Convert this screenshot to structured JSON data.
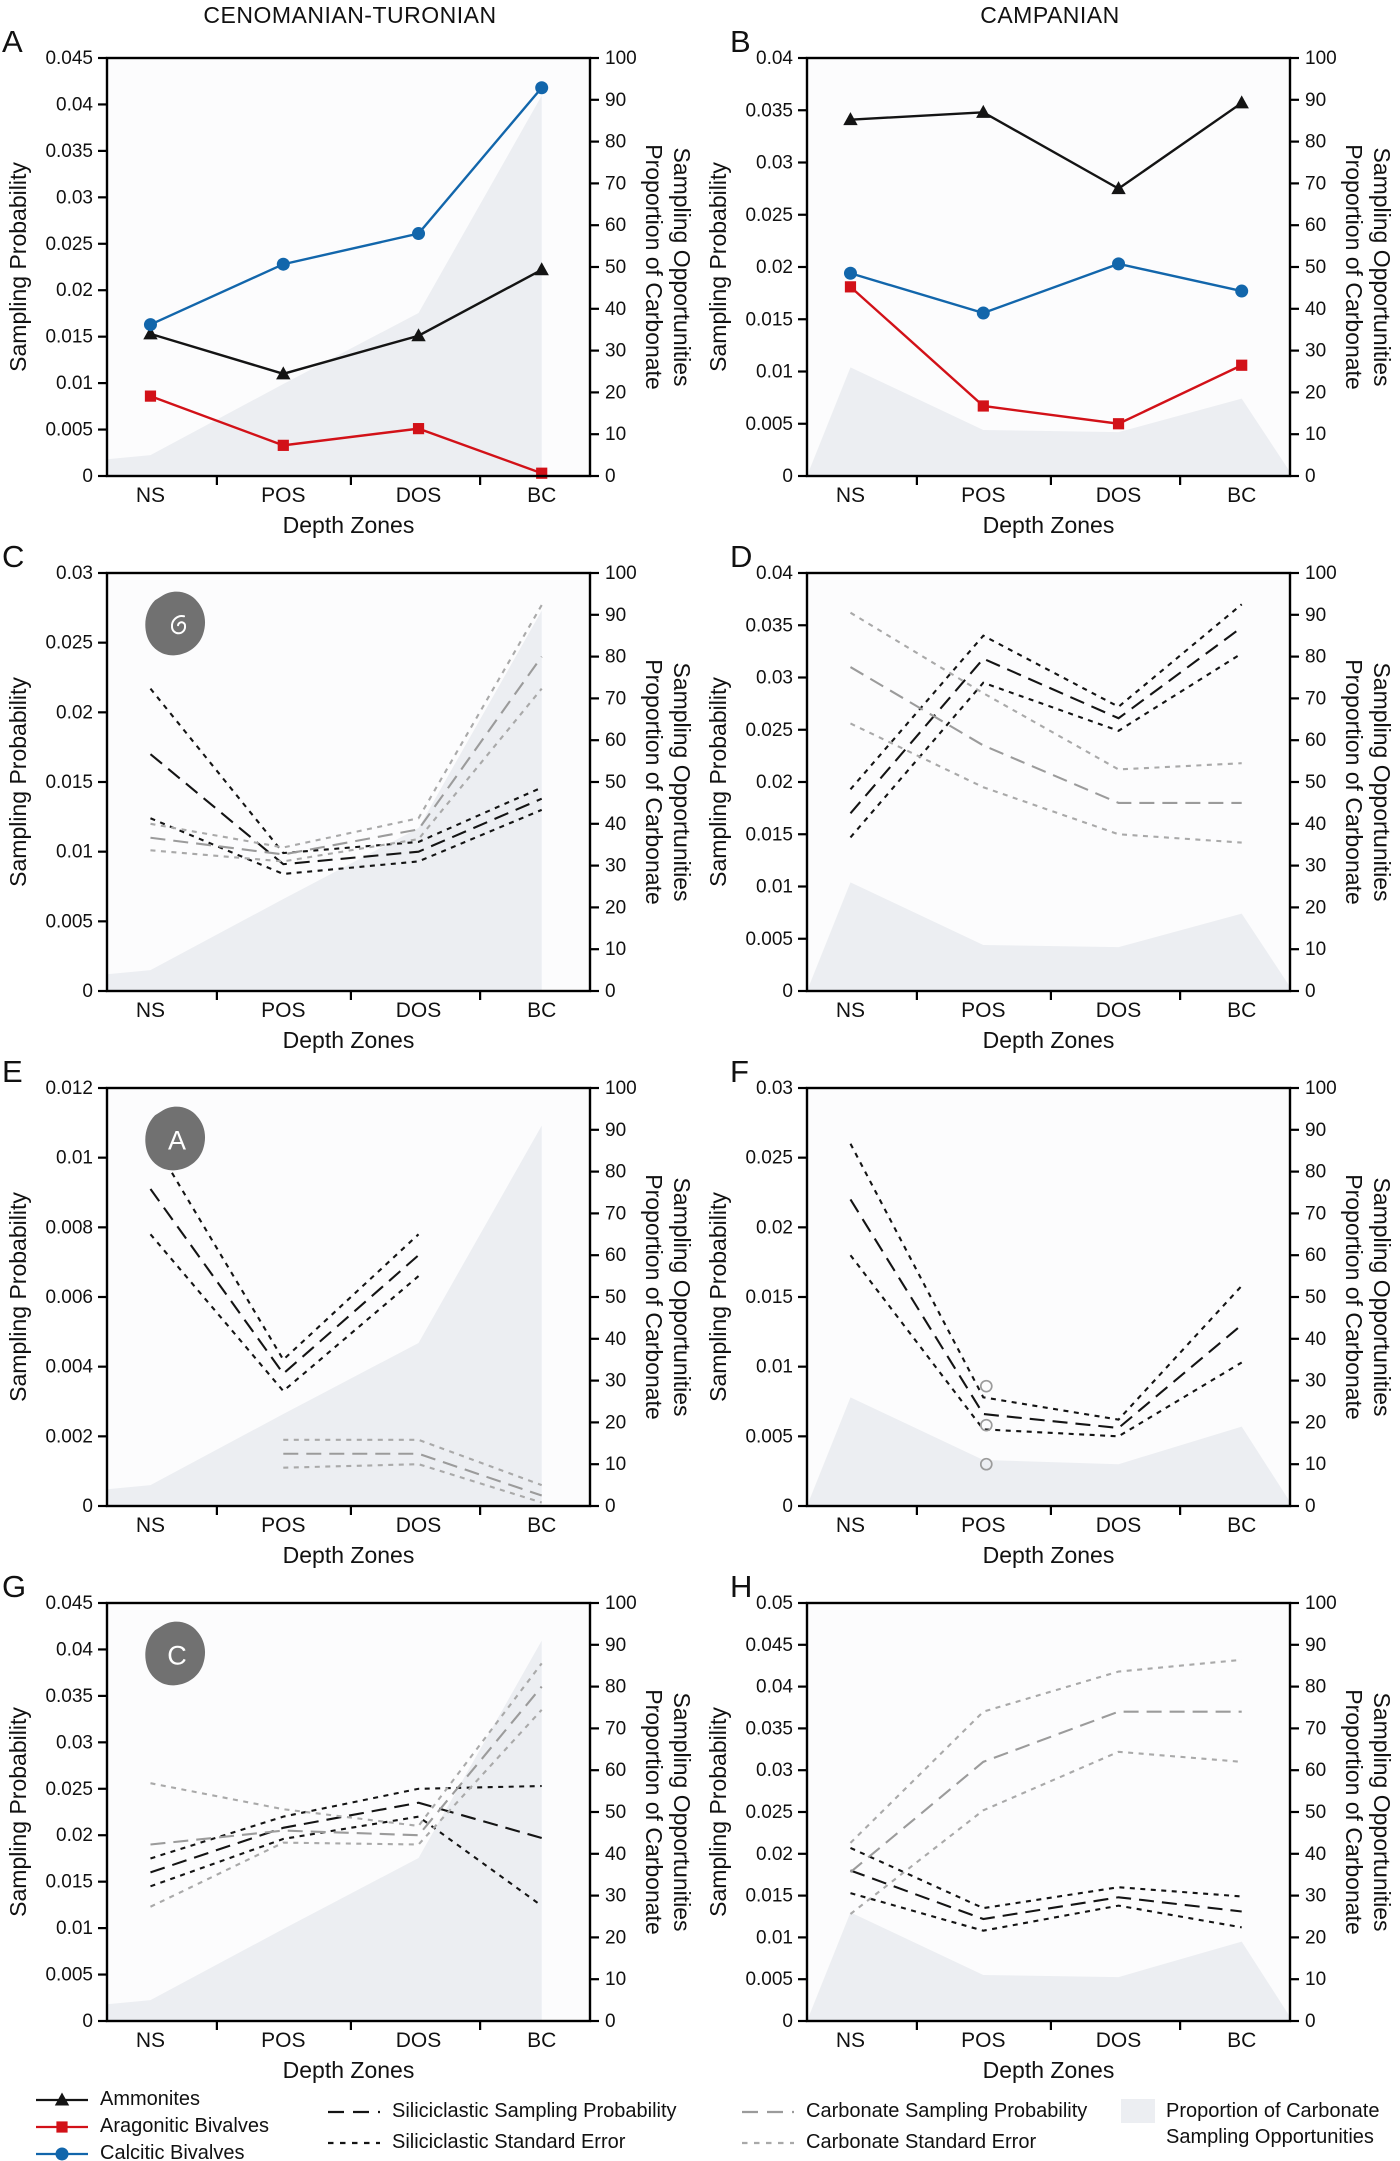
{
  "figure": {
    "column_titles": [
      "CENOMANIAN-TURONIAN",
      "CAMPANIAN"
    ],
    "x_axis_title": "Depth Zones",
    "y_left_title": "Sampling Probability",
    "y_right_title_line1": "Proportion of Carbonate",
    "y_right_title_line2": "Sampling Opportunities",
    "categories": [
      "NS",
      "POS",
      "DOS",
      "BC"
    ],
    "colors": {
      "black_line": "#141414",
      "red_line": "#d21118",
      "blue_line": "#1266ab",
      "carbonate_gray": "#9b9b9b",
      "carbonate_se_gray": "#a9a9a9",
      "area_fill": "#eceef2",
      "plot_background": "#fcfcfd",
      "icon_gray": "#717171"
    }
  },
  "chart_data": [
    {
      "panel": "A",
      "column": "CENOMANIAN-TURONIAN",
      "type": "line",
      "ylim": [
        0,
        0.045
      ],
      "ytick_step": 0.005,
      "y2lim": [
        0,
        100
      ],
      "y2tick_step": 10,
      "series": [
        {
          "name": "Ammonites",
          "color": "black",
          "style": "solid",
          "marker": "triangle",
          "values": [
            0.0153,
            0.011,
            0.0151,
            0.0222
          ]
        },
        {
          "name": "Aragonitic Bivalves",
          "color": "red",
          "style": "solid",
          "marker": "square",
          "values": [
            0.0086,
            0.0033,
            0.0051,
            0.0003
          ]
        },
        {
          "name": "Calcitic Bivalves",
          "color": "blue",
          "style": "solid",
          "marker": "circle",
          "values": [
            0.0163,
            0.0228,
            0.0261,
            0.0418
          ]
        }
      ],
      "area": {
        "name": "Proportion of Carbonate Sampling Opportunities",
        "axis": "right",
        "left_edge": 4,
        "values": [
          5,
          22,
          39,
          91
        ],
        "right_edge": null
      }
    },
    {
      "panel": "B",
      "column": "CAMPANIAN",
      "type": "line",
      "ylim": [
        0,
        0.04
      ],
      "ytick_step": 0.005,
      "y2lim": [
        0,
        100
      ],
      "y2tick_step": 10,
      "series": [
        {
          "name": "Ammonites",
          "color": "black",
          "style": "solid",
          "marker": "triangle",
          "values": [
            0.0341,
            0.0348,
            0.0275,
            0.0357
          ]
        },
        {
          "name": "Aragonitic Bivalves",
          "color": "red",
          "style": "solid",
          "marker": "square",
          "values": [
            0.0181,
            0.0067,
            0.005,
            0.0106
          ]
        },
        {
          "name": "Calcitic Bivalves",
          "color": "blue",
          "style": "solid",
          "marker": "circle",
          "values": [
            0.0194,
            0.0156,
            0.0203,
            0.0177
          ]
        }
      ],
      "area": {
        "name": "Proportion of Carbonate Sampling Opportunities",
        "axis": "right",
        "left_edge": 0,
        "values": [
          26,
          11,
          10.5,
          18.5
        ],
        "right_edge": 1
      }
    },
    {
      "panel": "C",
      "column": "CENOMANIAN-TURONIAN",
      "type": "line",
      "icon": {
        "type": "ammonite"
      },
      "ylim": [
        0,
        0.03
      ],
      "ytick_step": 0.005,
      "y2lim": [
        0,
        100
      ],
      "y2tick_step": 10,
      "series": [
        {
          "name": "Siliciclastic Sampling Probability",
          "color": "black",
          "style": "long-dash",
          "values": [
            0.017,
            0.0091,
            0.01,
            0.0138
          ]
        },
        {
          "name": "Siliciclastic Standard Error (upper)",
          "color": "black",
          "style": "short-dash",
          "values": [
            0.0217,
            0.0099,
            0.0107,
            0.0146
          ]
        },
        {
          "name": "Siliciclastic Standard Error (lower)",
          "color": "black",
          "style": "short-dash",
          "values": [
            0.0124,
            0.0084,
            0.0093,
            0.013
          ]
        },
        {
          "name": "Carbonate Sampling Probability",
          "color": "gray",
          "style": "long-dash",
          "values": [
            0.011,
            0.0098,
            0.0116,
            0.024
          ]
        },
        {
          "name": "Carbonate Standard Error (upper)",
          "color": "lightgray",
          "style": "short-dash",
          "values": [
            0.012,
            0.0103,
            0.0124,
            0.0277
          ]
        },
        {
          "name": "Carbonate Standard Error (lower)",
          "color": "lightgray",
          "style": "short-dash",
          "values": [
            0.0101,
            0.0093,
            0.0109,
            0.0217
          ]
        }
      ],
      "area": {
        "name": "Proportion of Carbonate Sampling Opportunities",
        "axis": "right",
        "left_edge": 4,
        "values": [
          5,
          22,
          39,
          91
        ],
        "right_edge": null
      }
    },
    {
      "panel": "D",
      "column": "CAMPANIAN",
      "type": "line",
      "ylim": [
        0,
        0.04
      ],
      "ytick_step": 0.005,
      "y2lim": [
        0,
        100
      ],
      "y2tick_step": 10,
      "series": [
        {
          "name": "Siliciclastic Sampling Probability",
          "color": "black",
          "style": "long-dash",
          "values": [
            0.017,
            0.0318,
            0.0261,
            0.0348
          ]
        },
        {
          "name": "Siliciclastic Standard Error (upper)",
          "color": "black",
          "style": "short-dash",
          "values": [
            0.0193,
            0.034,
            0.0272,
            0.037
          ]
        },
        {
          "name": "Siliciclastic Standard Error (lower)",
          "color": "black",
          "style": "short-dash",
          "values": [
            0.0147,
            0.0295,
            0.0249,
            0.0323
          ]
        },
        {
          "name": "Carbonate Sampling Probability",
          "color": "gray",
          "style": "long-dash",
          "values": [
            0.031,
            0.0235,
            0.018,
            0.018
          ]
        },
        {
          "name": "Carbonate Standard Error (upper)",
          "color": "lightgray",
          "style": "short-dash",
          "values": [
            0.0362,
            0.0285,
            0.0212,
            0.0218
          ]
        },
        {
          "name": "Carbonate Standard Error (lower)",
          "color": "lightgray",
          "style": "short-dash",
          "values": [
            0.0256,
            0.0195,
            0.015,
            0.0142
          ]
        }
      ],
      "area": {
        "name": "Proportion of Carbonate Sampling Opportunities",
        "axis": "right",
        "left_edge": 0,
        "values": [
          26,
          11,
          10.5,
          18.5
        ],
        "right_edge": 1
      }
    },
    {
      "panel": "E",
      "column": "CENOMANIAN-TURONIAN",
      "type": "line",
      "icon": {
        "type": "letter",
        "letter": "A"
      },
      "ylim": [
        0,
        0.012
      ],
      "ytick_step": 0.002,
      "y2lim": [
        0,
        100
      ],
      "y2tick_step": 10,
      "series": [
        {
          "name": "Siliciclastic Sampling Probability",
          "color": "black",
          "style": "long-dash",
          "values": [
            0.0091,
            0.0038,
            0.0072,
            null
          ]
        },
        {
          "name": "Siliciclastic Standard Error (upper)",
          "color": "black",
          "style": "short-dash",
          "values": [
            0.0106,
            0.0042,
            0.0078,
            null
          ]
        },
        {
          "name": "Siliciclastic Standard Error (lower)",
          "color": "black",
          "style": "short-dash",
          "values": [
            0.0078,
            0.0033,
            0.0066,
            null
          ]
        },
        {
          "name": "Carbonate Sampling Probability",
          "color": "gray",
          "style": "long-dash",
          "values": [
            null,
            0.0015,
            0.0015,
            0.0003
          ]
        },
        {
          "name": "Carbonate Standard Error (upper)",
          "color": "lightgray",
          "style": "short-dash",
          "values": [
            null,
            0.0019,
            0.0019,
            0.0006
          ]
        },
        {
          "name": "Carbonate Standard Error (lower)",
          "color": "lightgray",
          "style": "short-dash",
          "values": [
            null,
            0.0011,
            0.0012,
            0.0001
          ]
        }
      ],
      "area": {
        "name": "Proportion of Carbonate Sampling Opportunities",
        "axis": "right",
        "left_edge": 4,
        "values": [
          5,
          22,
          39,
          91
        ],
        "right_edge": null
      }
    },
    {
      "panel": "F",
      "column": "CAMPANIAN",
      "type": "line",
      "ylim": [
        0,
        0.03
      ],
      "ytick_step": 0.005,
      "y2lim": [
        0,
        100
      ],
      "y2tick_step": 10,
      "series": [
        {
          "name": "Siliciclastic Sampling Probability",
          "color": "black",
          "style": "long-dash",
          "values": [
            0.022,
            0.0066,
            0.0056,
            0.013
          ]
        },
        {
          "name": "Siliciclastic Standard Error (upper)",
          "color": "black",
          "style": "short-dash",
          "values": [
            0.026,
            0.0078,
            0.0062,
            0.0158
          ]
        },
        {
          "name": "Siliciclastic Standard Error (lower)",
          "color": "black",
          "style": "short-dash",
          "values": [
            0.018,
            0.0055,
            0.005,
            0.0103
          ]
        },
        {
          "name": "Carbonate data points",
          "color": "gray",
          "marker": "open-circle",
          "points": [
            {
              "cat": "POS",
              "value": 0.0086
            },
            {
              "cat": "POS",
              "value": 0.0058
            },
            {
              "cat": "POS",
              "value": 0.003
            }
          ]
        }
      ],
      "area": {
        "name": "Proportion of Carbonate Sampling Opportunities",
        "axis": "right",
        "left_edge": 0,
        "values": [
          26,
          11,
          10,
          19
        ],
        "right_edge": 1
      }
    },
    {
      "panel": "G",
      "column": "CENOMANIAN-TURONIAN",
      "type": "line",
      "icon": {
        "type": "letter",
        "letter": "C"
      },
      "ylim": [
        0,
        0.045
      ],
      "ytick_step": 0.005,
      "y2lim": [
        0,
        100
      ],
      "y2tick_step": 10,
      "series": [
        {
          "name": "Siliciclastic Sampling Probability",
          "color": "black",
          "style": "long-dash",
          "values": [
            0.016,
            0.0208,
            0.0235,
            0.0197
          ]
        },
        {
          "name": "Siliciclastic Standard Error (upper)",
          "color": "black",
          "style": "short-dash",
          "values": [
            0.0175,
            0.022,
            0.025,
            0.0253
          ]
        },
        {
          "name": "Siliciclastic Standard Error (lower)",
          "color": "black",
          "style": "short-dash",
          "values": [
            0.0145,
            0.0196,
            0.022,
            0.0124
          ]
        },
        {
          "name": "Carbonate Sampling Probability",
          "color": "gray",
          "style": "long-dash",
          "values": [
            0.019,
            0.0205,
            0.02,
            0.036
          ]
        },
        {
          "name": "Carbonate Standard Error (upper)",
          "color": "lightgray",
          "style": "short-dash",
          "values": [
            0.0256,
            0.0228,
            0.021,
            0.0385
          ]
        },
        {
          "name": "Carbonate Standard Error (lower)",
          "color": "lightgray",
          "style": "short-dash",
          "values": [
            0.0123,
            0.0192,
            0.019,
            0.0335
          ]
        }
      ],
      "area": {
        "name": "Proportion of Carbonate Sampling Opportunities",
        "axis": "right",
        "left_edge": 4,
        "values": [
          5,
          22,
          39,
          91
        ],
        "right_edge": null
      }
    },
    {
      "panel": "H",
      "column": "CAMPANIAN",
      "type": "line",
      "ylim": [
        0,
        0.05
      ],
      "ytick_step": 0.005,
      "y2lim": [
        0,
        100
      ],
      "y2tick_step": 10,
      "series": [
        {
          "name": "Siliciclastic Sampling Probability",
          "color": "black",
          "style": "long-dash",
          "values": [
            0.018,
            0.0122,
            0.0148,
            0.0131
          ]
        },
        {
          "name": "Siliciclastic Standard Error (upper)",
          "color": "black",
          "style": "short-dash",
          "values": [
            0.0207,
            0.0135,
            0.016,
            0.0149
          ]
        },
        {
          "name": "Siliciclastic Standard Error (lower)",
          "color": "black",
          "style": "short-dash",
          "values": [
            0.0153,
            0.0108,
            0.0138,
            0.0112
          ]
        },
        {
          "name": "Carbonate Sampling Probability",
          "color": "gray",
          "style": "long-dash",
          "values": [
            0.0178,
            0.031,
            0.037,
            0.037
          ]
        },
        {
          "name": "Carbonate Standard Error (upper)",
          "color": "lightgray",
          "style": "short-dash",
          "values": [
            0.0213,
            0.037,
            0.0418,
            0.0432
          ]
        },
        {
          "name": "Carbonate Standard Error (lower)",
          "color": "lightgray",
          "style": "short-dash",
          "values": [
            0.0128,
            0.0252,
            0.0322,
            0.031
          ]
        }
      ],
      "area": {
        "name": "Proportion of Carbonate Sampling Opportunities",
        "axis": "right",
        "left_edge": 0,
        "values": [
          26,
          11,
          10.5,
          19
        ],
        "right_edge": 1
      }
    }
  ],
  "legend": {
    "taxa": [
      {
        "label": "Ammonites",
        "marker": "triangle",
        "color": "black"
      },
      {
        "label": "Aragonitic Bivalves",
        "marker": "square",
        "color": "red"
      },
      {
        "label": "Calcitic Bivalves",
        "marker": "circle",
        "color": "blue"
      }
    ],
    "siliciclastic": [
      {
        "label": "Siliciclastic Sampling Probability",
        "style": "long-dash",
        "color": "black"
      },
      {
        "label": "Siliciclastic Standard Error",
        "style": "short-dash",
        "color": "black"
      }
    ],
    "carbonate": [
      {
        "label": "Carbonate Sampling Probability",
        "style": "long-dash",
        "color": "gray"
      },
      {
        "label": "Carbonate Standard Error",
        "style": "short-dash",
        "color": "lightgray"
      }
    ],
    "area": {
      "label_line1": "Proportion of Carbonate",
      "label_line2": "Sampling Opportunities"
    }
  }
}
